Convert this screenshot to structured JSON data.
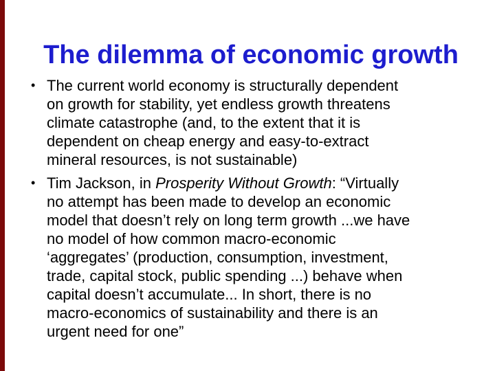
{
  "slide": {
    "title": "The dilemma of economic growth",
    "title_color": "#1d1dce",
    "accent_bar_color": "#7c0a0a",
    "bullet_char": "•",
    "bullets": [
      {
        "lines": [
          "The current world economy is structurally dependent",
          "on growth for stability, yet endless growth threatens",
          "climate catastrophe (and, to the extent that it is",
          "dependent on cheap energy and easy-to-extract",
          "mineral resources, is not sustainable)"
        ]
      },
      {
        "line1_pre": "Tim Jackson, in ",
        "line1_italic": "Prosperity Without Growth",
        "line1_post": ": “Virtually",
        "lines": [
          "no attempt has been made to develop an economic",
          "model that doesn’t rely on long term growth ...we have",
          "no model of how common macro-economic",
          "‘aggregates’ (production, consumption, investment,",
          "trade, capital stock, public spending ...) behave when",
          "capital doesn’t accumulate... In short, there is no",
          "macro-economics of sustainability and there is an",
          "urgent need for one”"
        ]
      }
    ]
  }
}
